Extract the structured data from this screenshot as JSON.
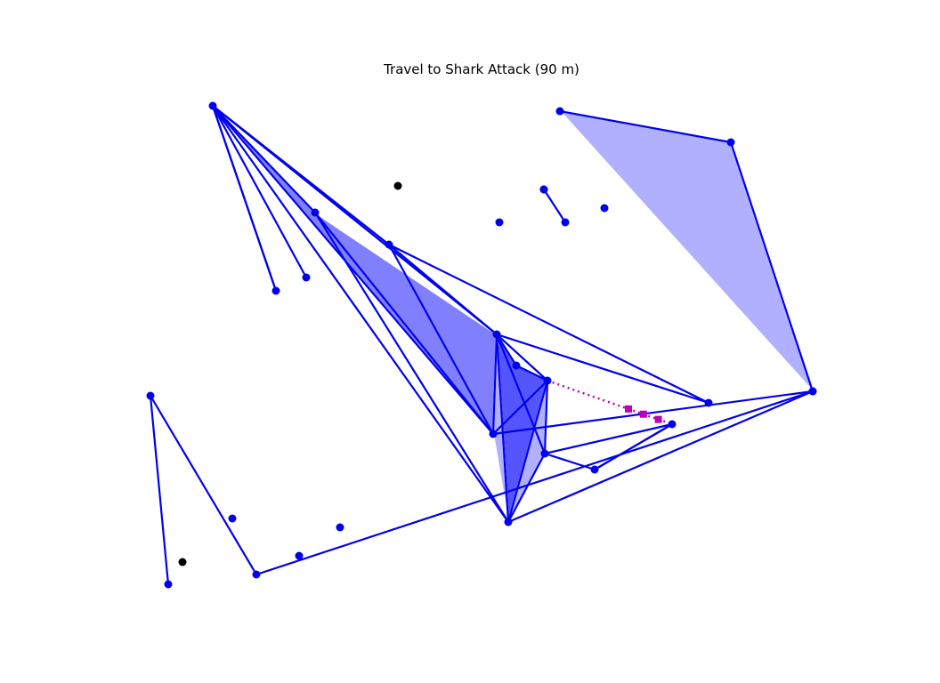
{
  "title": "Travel to Shark Attack (90 m)",
  "colors": {
    "network": "#0000ee",
    "fill_dark": "#5555ff",
    "fill_mid": "#8080ff",
    "fill_light": "#b0b0ff",
    "path": "#bb00bb",
    "unconnected": "#000000",
    "background": "#ffffff"
  },
  "nodes": [
    {
      "id": "a",
      "kind": "network"
    },
    {
      "id": "b",
      "kind": "network"
    },
    {
      "id": "c",
      "kind": "network"
    },
    {
      "id": "d",
      "kind": "network"
    },
    {
      "id": "e",
      "kind": "network"
    },
    {
      "id": "f",
      "kind": "network"
    },
    {
      "id": "g",
      "kind": "network"
    },
    {
      "id": "h",
      "kind": "network"
    },
    {
      "id": "i",
      "kind": "network"
    },
    {
      "id": "j",
      "kind": "network"
    },
    {
      "id": "k",
      "kind": "network"
    },
    {
      "id": "l",
      "kind": "network"
    },
    {
      "id": "m",
      "kind": "network"
    },
    {
      "id": "n",
      "kind": "network"
    },
    {
      "id": "o",
      "kind": "network"
    },
    {
      "id": "p",
      "kind": "network"
    },
    {
      "id": "q",
      "kind": "network"
    },
    {
      "id": "r",
      "kind": "network"
    },
    {
      "id": "s",
      "kind": "network"
    },
    {
      "id": "t",
      "kind": "network"
    },
    {
      "id": "u",
      "kind": "network"
    },
    {
      "id": "v",
      "kind": "network"
    },
    {
      "id": "w",
      "kind": "network"
    },
    {
      "id": "x",
      "kind": "network"
    },
    {
      "id": "y",
      "kind": "network"
    },
    {
      "id": "z",
      "kind": "network"
    },
    {
      "id": "aa",
      "kind": "unconnected"
    },
    {
      "id": "ab",
      "kind": "unconnected"
    }
  ],
  "edges": [
    [
      "a",
      "e"
    ],
    [
      "a",
      "d"
    ],
    [
      "a",
      "b"
    ],
    [
      "a",
      "c"
    ],
    [
      "a",
      "g"
    ],
    [
      "a",
      "f"
    ],
    [
      "b",
      "e"
    ],
    [
      "b",
      "h"
    ],
    [
      "b",
      "g"
    ],
    [
      "c",
      "f"
    ],
    [
      "c",
      "g"
    ],
    [
      "e",
      "f"
    ],
    [
      "e",
      "i"
    ],
    [
      "e",
      "k"
    ],
    [
      "e",
      "g"
    ],
    [
      "e",
      "h"
    ],
    [
      "e",
      "j"
    ],
    [
      "i",
      "j"
    ],
    [
      "j",
      "f"
    ],
    [
      "j",
      "g"
    ],
    [
      "j",
      "k"
    ],
    [
      "k",
      "f"
    ],
    [
      "k",
      "p"
    ],
    [
      "f",
      "q"
    ],
    [
      "g",
      "q"
    ],
    [
      "p",
      "r"
    ],
    [
      "n",
      "q"
    ],
    [
      "m",
      "n"
    ],
    [
      "l",
      "m"
    ],
    [
      "s",
      "t"
    ],
    [
      "t",
      "u"
    ],
    [
      "u",
      "q"
    ],
    [
      "w",
      "x"
    ]
  ],
  "regions": [
    {
      "nodes": [
        "a",
        "b",
        "e"
      ],
      "shade": "dark"
    },
    {
      "nodes": [
        "a",
        "c",
        "e",
        "g"
      ],
      "shade": "mid"
    },
    {
      "nodes": [
        "e",
        "i",
        "j",
        "f"
      ],
      "shade": "dark"
    },
    {
      "nodes": [
        "e",
        "f",
        "g"
      ],
      "shade": "light"
    },
    {
      "nodes": [
        "f",
        "j",
        "k"
      ],
      "shade": "light"
    },
    {
      "nodes": [
        "s",
        "t",
        "u"
      ],
      "shade": "light"
    }
  ],
  "path": {
    "from": "j",
    "to": "p",
    "style": "dotted",
    "markers": 3
  }
}
